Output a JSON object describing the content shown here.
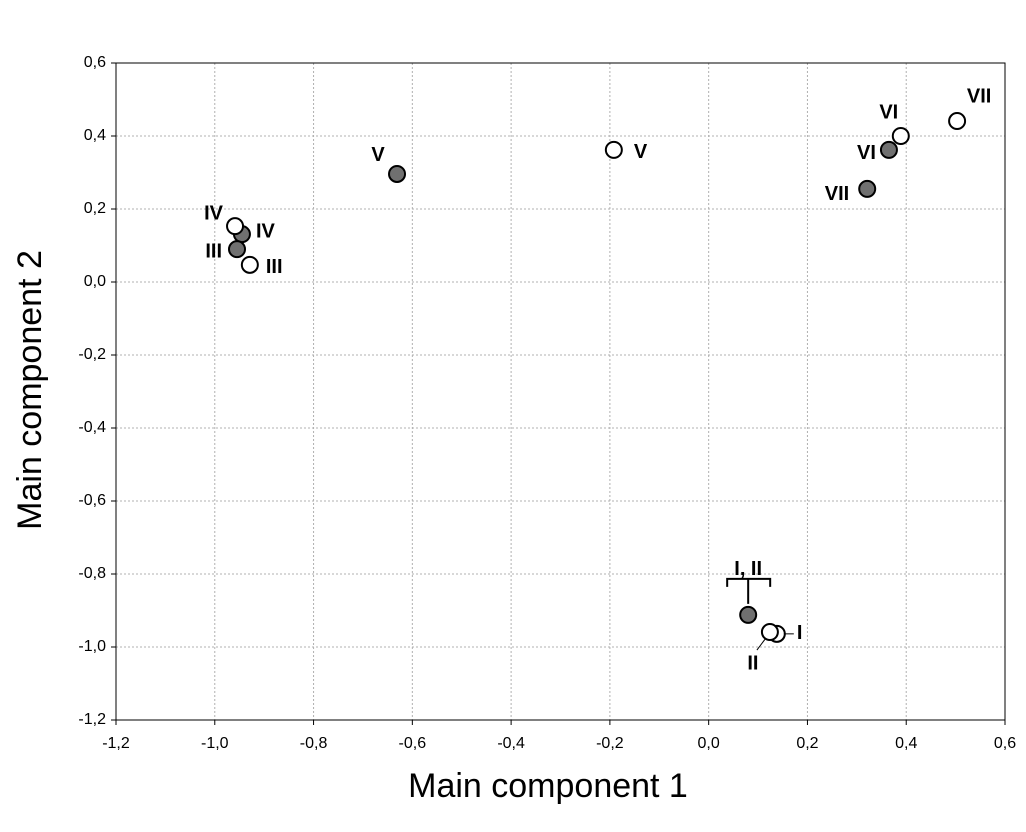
{
  "chart_data": {
    "type": "scatter",
    "x_label": "Main component 1",
    "y_label": "Main component 2",
    "xlim": [
      -1.2,
      0.6
    ],
    "ylim": [
      -1.2,
      0.6
    ],
    "xticks": [
      {
        "value": -1.2,
        "label": "-1,2"
      },
      {
        "value": -1.0,
        "label": "-1,0"
      },
      {
        "value": -0.8,
        "label": "-0,8"
      },
      {
        "value": -0.6,
        "label": "-0,6"
      },
      {
        "value": -0.4,
        "label": "-0,4"
      },
      {
        "value": -0.2,
        "label": "-0,2"
      },
      {
        "value": 0,
        "label": "0,0"
      },
      {
        "value": 0.2,
        "label": "0,2"
      },
      {
        "value": 0.4,
        "label": "0,4"
      },
      {
        "value": 0.6,
        "label": "0,6"
      }
    ],
    "yticks": [
      {
        "value": -1.2,
        "label": "-1,2"
      },
      {
        "value": -1.0,
        "label": "-1,0"
      },
      {
        "value": -0.8,
        "label": "-0,8"
      },
      {
        "value": -0.6,
        "label": "-0,6"
      },
      {
        "value": -0.4,
        "label": "-0,4"
      },
      {
        "value": -0.2,
        "label": "-0,2"
      },
      {
        "value": 0,
        "label": "0,0"
      },
      {
        "value": 0.2,
        "label": "0,2"
      },
      {
        "value": 0.4,
        "label": "0,4"
      },
      {
        "value": 0.6,
        "label": "0,6"
      }
    ],
    "grid": true,
    "series": [
      {
        "color": "#707070",
        "labels": [
          "V",
          "IV",
          "III",
          "VI",
          "VII",
          "I, II"
        ],
        "x": [
          -0.631,
          -0.945,
          -0.955,
          0.365,
          0.321,
          0.08
        ],
        "values": [
          0.296,
          0.131,
          0.09,
          0.362,
          0.255,
          -0.912
        ]
      },
      {
        "color": "#ffffff",
        "labels": [
          "V",
          "IV",
          "III",
          "VI",
          "VII",
          "I",
          "II"
        ],
        "x": [
          -0.192,
          -0.959,
          -0.929,
          0.389,
          0.503,
          0.138,
          0.124
        ],
        "values": [
          0.362,
          0.153,
          0.047,
          0.4,
          0.441,
          -0.964,
          -0.959
        ]
      }
    ]
  }
}
